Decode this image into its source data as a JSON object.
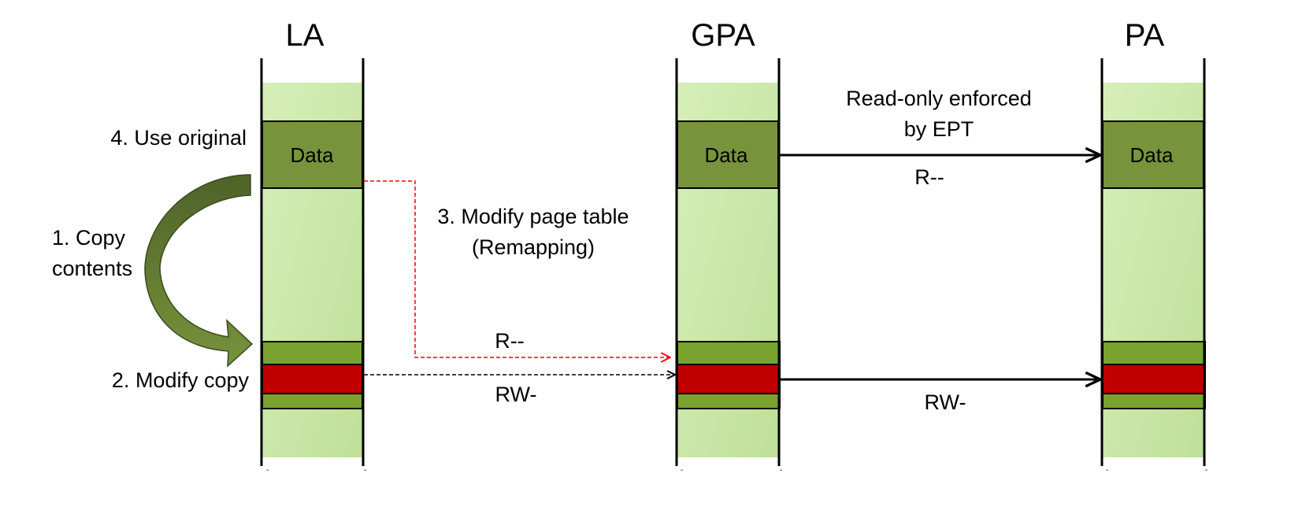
{
  "colors": {
    "column_fill_top": "#d6efb8",
    "column_fill_bottom": "#bfe09a",
    "data_green": "#77933c",
    "stripe_green": "#77a32e",
    "modified_red": "#c00000",
    "remap_red": "#ff0000",
    "arrow_black": "#000000",
    "curved_arrow_dark": "#4f6228",
    "curved_arrow_light": "#77933c"
  },
  "columns": {
    "la": {
      "title": "LA"
    },
    "gpa": {
      "title": "GPA"
    },
    "pa": {
      "title": "PA"
    }
  },
  "boxes": {
    "la_data": "Data",
    "gpa_data": "Data",
    "pa_data": "Data"
  },
  "labels": {
    "use_original": "4. Use original",
    "copy_contents_1": "1. Copy",
    "copy_contents_2": "contents",
    "modify_copy": "2. Modify copy",
    "modify_page_table_1": "3. Modify page table",
    "modify_page_table_2": "(Remapping)",
    "readonly_1": "Read-only enforced",
    "readonly_2": "by EPT",
    "perm_data_ept": "R--",
    "perm_remap": "R--",
    "perm_copy_la": "RW-",
    "perm_copy_ept": "RW-"
  },
  "icons": {
    "curved_arrow": "curved-arrow-icon"
  }
}
